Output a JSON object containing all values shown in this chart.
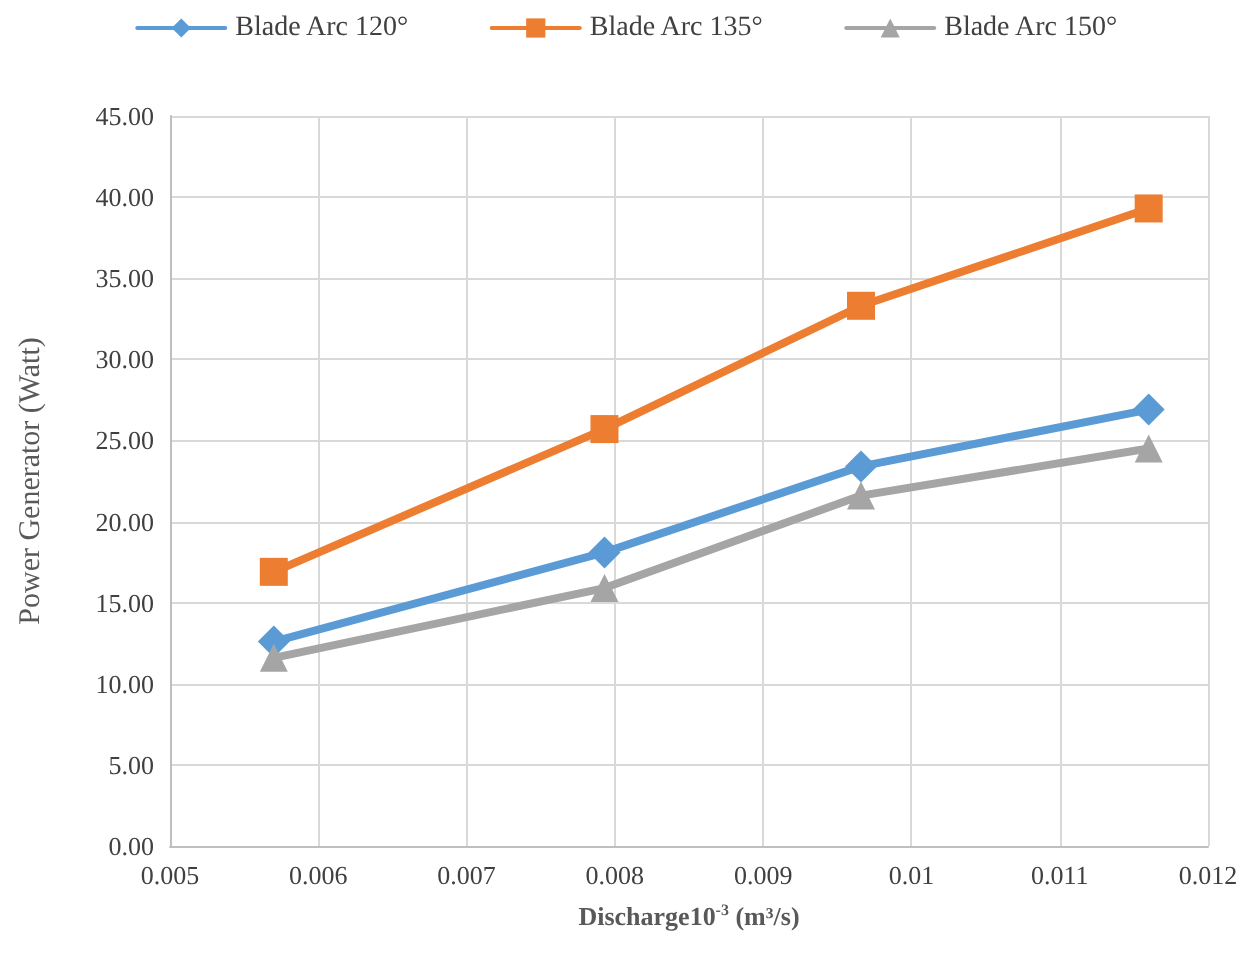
{
  "chart_data": {
    "type": "line",
    "xlabel": "Discharge10$^{-3}$ (m³/s)",
    "ylabel": "Power Generator (Watt)",
    "series": [
      {
        "name": "Blade Arc 120°",
        "color": "#5b9bd5",
        "marker": "diamond",
        "x": [
          0.0057,
          0.00793,
          0.00966,
          0.0116
        ],
        "values": [
          12.6,
          18.1,
          23.4,
          26.9
        ]
      },
      {
        "name": "Blade Arc 135°",
        "color": "#ed7d31",
        "marker": "square",
        "x": [
          0.0057,
          0.00793,
          0.00966,
          0.0116
        ],
        "values": [
          16.9,
          25.7,
          33.3,
          39.3
        ]
      },
      {
        "name": "Blade Arc 150°",
        "color": "#a5a5a5",
        "marker": "triangle",
        "x": [
          0.0057,
          0.00793,
          0.00966,
          0.0116
        ],
        "values": [
          11.6,
          15.9,
          21.6,
          24.5
        ]
      }
    ],
    "xlim": [
      0.005,
      0.012
    ],
    "xticks": [
      0.005,
      0.006,
      0.007,
      0.008,
      0.009,
      0.01,
      0.011,
      0.012
    ],
    "ylim": [
      0,
      45
    ],
    "yticks": [
      {
        "value": 0,
        "label": "0.00"
      },
      {
        "value": 5,
        "label": "5.00"
      },
      {
        "value": 10,
        "label": "10.00"
      },
      {
        "value": 15,
        "label": "15.00"
      },
      {
        "value": 20,
        "label": "20.00"
      },
      {
        "value": 25,
        "label": "25.00"
      },
      {
        "value": 30,
        "label": "30.00"
      },
      {
        "value": 35,
        "label": "35.00"
      },
      {
        "value": 40,
        "label": "40.00"
      },
      {
        "value": 45,
        "label": "45.00"
      }
    ],
    "grid": true,
    "legend": "top",
    "line_style": "solid"
  }
}
